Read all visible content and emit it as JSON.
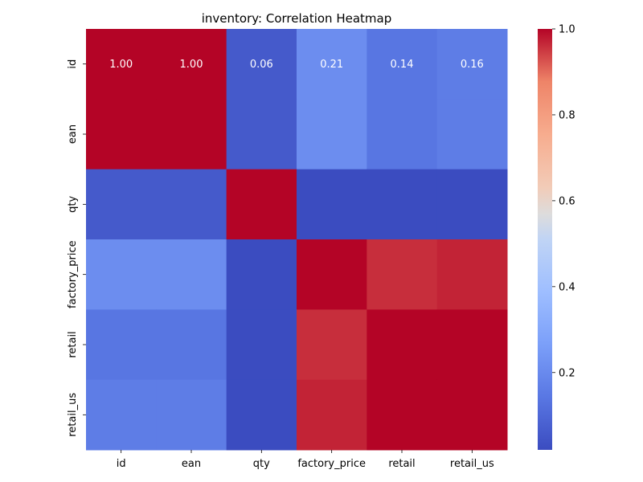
{
  "chart_data": {
    "type": "heatmap",
    "title": "inventory: Correlation Heatmap",
    "xlabel": "",
    "ylabel": "",
    "x_categories": [
      "id",
      "ean",
      "qty",
      "factory_price",
      "retail",
      "retail_us"
    ],
    "y_categories": [
      "id",
      "ean",
      "qty",
      "factory_price",
      "retail",
      "retail_us"
    ],
    "values": [
      [
        1.0,
        1.0,
        0.06,
        0.21,
        0.14,
        0.16
      ],
      [
        1.0,
        1.0,
        0.06,
        0.21,
        0.14,
        0.16
      ],
      [
        0.06,
        0.06,
        1.0,
        0.02,
        0.02,
        0.02
      ],
      [
        0.21,
        0.21,
        0.02,
        1.0,
        0.96,
        0.97
      ],
      [
        0.14,
        0.14,
        0.02,
        0.96,
        1.0,
        1.0
      ],
      [
        0.16,
        0.16,
        0.02,
        0.97,
        1.0,
        1.0
      ]
    ],
    "annotated_rows": [
      0
    ],
    "colormap": "coolwarm",
    "colorbar": {
      "min": 0.02,
      "max": 1.0,
      "ticks": [
        0.2,
        0.4,
        0.6,
        0.8,
        1.0
      ],
      "tick_labels": [
        "0.2",
        "0.4",
        "0.6",
        "0.8",
        "1.0"
      ]
    }
  }
}
